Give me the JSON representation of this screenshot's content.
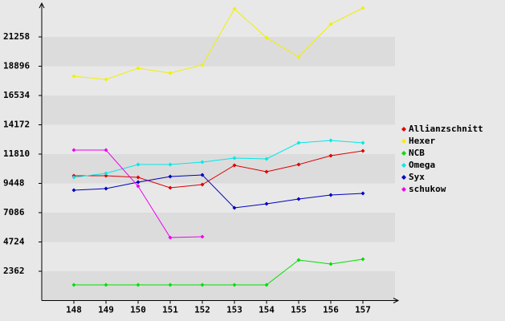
{
  "chart_data": {
    "type": "line",
    "categories": [
      "148",
      "149",
      "150",
      "151",
      "152",
      "153",
      "154",
      "155",
      "156",
      "157"
    ],
    "series": [
      {
        "name": "Allianzschnitt",
        "color": "#dd0000",
        "values": [
          10063,
          10063,
          9933,
          9092,
          9351,
          10904,
          10387,
          10969,
          11681,
          12069
        ]
      },
      {
        "name": "Hexer",
        "color": "#f0f000",
        "values": [
          18087,
          17829,
          18735,
          18346,
          18993,
          23523,
          21194,
          19640,
          22294,
          23588
        ]
      },
      {
        "name": "NCB",
        "color": "#00e000",
        "values": [
          1262,
          1262,
          1262,
          1262,
          1262,
          1262,
          1262,
          3268,
          2945,
          3333
        ]
      },
      {
        "name": "Omega",
        "color": "#00e8e8",
        "values": [
          9933,
          10257,
          10969,
          10969,
          11163,
          11487,
          11422,
          12716,
          12910,
          12716
        ]
      },
      {
        "name": "Syx",
        "color": "#0000c0",
        "values": [
          8898,
          9027,
          9545,
          9998,
          10128,
          7474,
          7797,
          8186,
          8510,
          8639
        ]
      },
      {
        "name": "schukow",
        "color": "#ee00ee",
        "values": [
          12134,
          12134,
          9222,
          5080,
          5145,
          null,
          null,
          null,
          null,
          null
        ]
      }
    ],
    "ylim": [
      0,
      23620
    ],
    "yticks": [
      2362,
      4724,
      7086,
      9448,
      11810,
      14172,
      16534,
      18896,
      21258
    ],
    "grid": true
  }
}
